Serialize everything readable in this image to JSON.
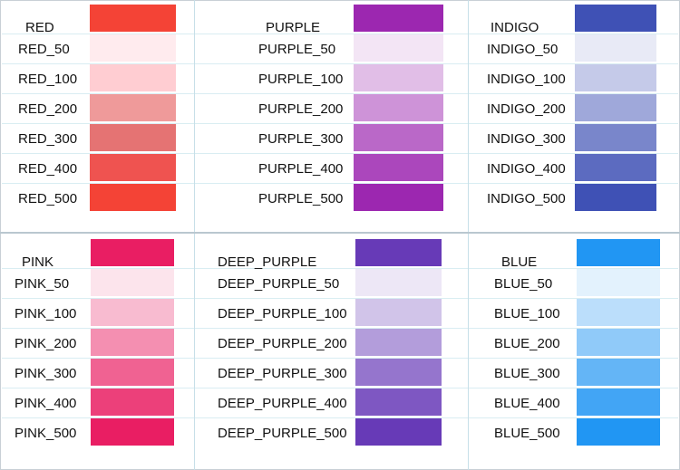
{
  "panels": [
    {
      "id": "red",
      "rows": [
        {
          "label": "RED",
          "color": "#F44336"
        },
        {
          "label": "RED_50",
          "color": "#FFEBEE"
        },
        {
          "label": "RED_100",
          "color": "#FFCDD2"
        },
        {
          "label": "RED_200",
          "color": "#EF9A9A"
        },
        {
          "label": "RED_300",
          "color": "#E57373"
        },
        {
          "label": "RED_400",
          "color": "#EF5350"
        },
        {
          "label": "RED_500",
          "color": "#F44336"
        }
      ]
    },
    {
      "id": "purple",
      "rows": [
        {
          "label": "PURPLE",
          "color": "#9C27B0"
        },
        {
          "label": "PURPLE_50",
          "color": "#F3E5F5"
        },
        {
          "label": "PURPLE_100",
          "color": "#E1BEE7"
        },
        {
          "label": "PURPLE_200",
          "color": "#CE93D8"
        },
        {
          "label": "PURPLE_300",
          "color": "#BA68C8"
        },
        {
          "label": "PURPLE_400",
          "color": "#AB47BC"
        },
        {
          "label": "PURPLE_500",
          "color": "#9C27B0"
        }
      ]
    },
    {
      "id": "indigo",
      "rows": [
        {
          "label": "INDIGO",
          "color": "#3F51B5"
        },
        {
          "label": "INDIGO_50",
          "color": "#E8EAF6"
        },
        {
          "label": "INDIGO_100",
          "color": "#C5CAE9"
        },
        {
          "label": "INDIGO_200",
          "color": "#9FA8DA"
        },
        {
          "label": "INDIGO_300",
          "color": "#7986CB"
        },
        {
          "label": "INDIGO_400",
          "color": "#5C6BC0"
        },
        {
          "label": "INDIGO_500",
          "color": "#3F51B5"
        }
      ]
    },
    {
      "id": "pink",
      "rows": [
        {
          "label": "PINK",
          "color": "#E91E63"
        },
        {
          "label": "PINK_50",
          "color": "#FCE4EC"
        },
        {
          "label": "PINK_100",
          "color": "#F8BBD0"
        },
        {
          "label": "PINK_200",
          "color": "#F48FB1"
        },
        {
          "label": "PINK_300",
          "color": "#F06292"
        },
        {
          "label": "PINK_400",
          "color": "#EC407A"
        },
        {
          "label": "PINK_500",
          "color": "#E91E63"
        }
      ]
    },
    {
      "id": "deep-purple",
      "rows": [
        {
          "label": "DEEP_PURPLE",
          "color": "#673AB7"
        },
        {
          "label": "DEEP_PURPLE_50",
          "color": "#EDE7F6"
        },
        {
          "label": "DEEP_PURPLE_100",
          "color": "#D1C4E9"
        },
        {
          "label": "DEEP_PURPLE_200",
          "color": "#B39DDB"
        },
        {
          "label": "DEEP_PURPLE_300",
          "color": "#9575CD"
        },
        {
          "label": "DEEP_PURPLE_400",
          "color": "#7E57C2"
        },
        {
          "label": "DEEP_PURPLE_500",
          "color": "#673AB7"
        }
      ]
    },
    {
      "id": "blue",
      "rows": [
        {
          "label": "BLUE",
          "color": "#2196F3"
        },
        {
          "label": "BLUE_50",
          "color": "#E3F2FD"
        },
        {
          "label": "BLUE_100",
          "color": "#BBDEFB"
        },
        {
          "label": "BLUE_200",
          "color": "#90CAF9"
        },
        {
          "label": "BLUE_300",
          "color": "#64B5F6"
        },
        {
          "label": "BLUE_400",
          "color": "#42A5F5"
        },
        {
          "label": "BLUE_500",
          "color": "#2196F3"
        }
      ]
    }
  ]
}
